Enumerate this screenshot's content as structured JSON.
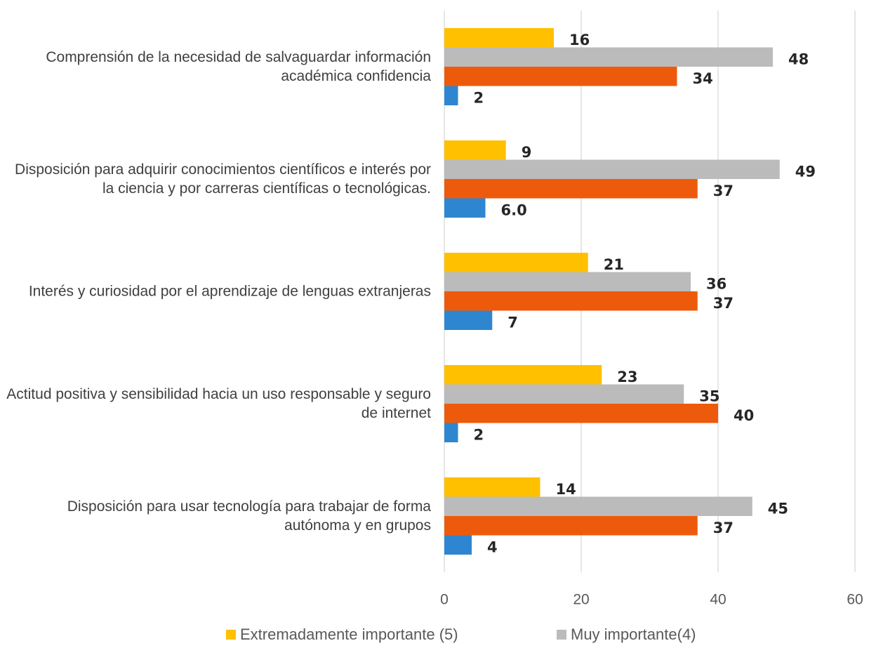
{
  "chart_data": {
    "type": "bar",
    "orientation": "horizontal",
    "categories": [
      "Comprensión de la necesidad de salvaguardar información académica confidencia",
      "Disposición para adquirir conocimientos científicos e interés por la ciencia y por carreras científicas o tecnológicas.",
      "Interés y curiosidad por el aprendizaje de lenguas extranjeras",
      "Actitud positiva y sensibilidad hacia un uso responsable y seguro de internet",
      "Disposición para usar tecnología para trabajar de forma autónoma y en grupos"
    ],
    "series": [
      {
        "name": "Extremadamente importante (5)",
        "color": "#FFC000",
        "values": [
          16,
          9,
          21,
          23,
          14
        ]
      },
      {
        "name": "Muy importante(4)",
        "color": "#BBBBBB",
        "values": [
          48,
          49,
          36,
          35,
          45
        ]
      },
      {
        "color": "#EE5A0C",
        "values": [
          34,
          37,
          37,
          40,
          37
        ]
      },
      {
        "color": "#2E86D0",
        "values": [
          2,
          6,
          7,
          2,
          4
        ],
        "value_labels": [
          "2",
          "6.0",
          "7",
          "2",
          "4"
        ]
      }
    ],
    "xlim": [
      0,
      60
    ],
    "xticks": [
      0,
      20,
      40,
      60
    ],
    "grid": true,
    "legend": "bottom"
  }
}
